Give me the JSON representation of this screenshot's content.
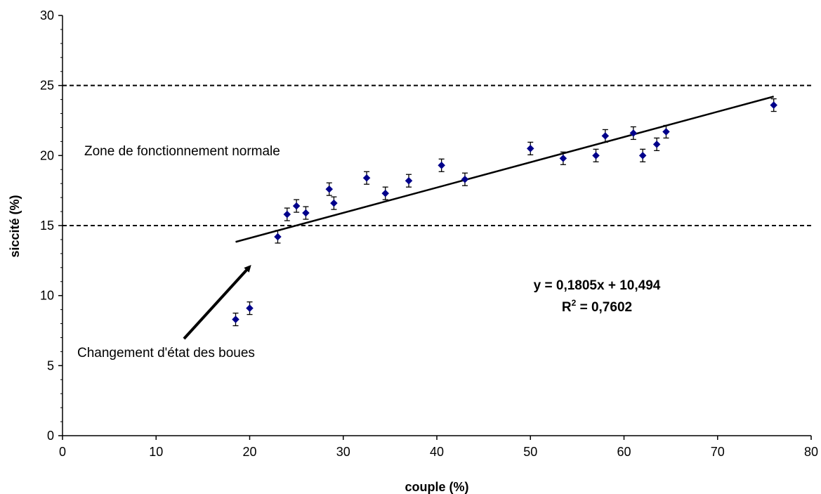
{
  "chart_data": {
    "type": "scatter",
    "xlabel": "couple (%)",
    "ylabel": "siccité (%)",
    "xlim": [
      0,
      80
    ],
    "ylim": [
      0,
      30
    ],
    "x_ticks": [
      "0",
      "10",
      "20",
      "30",
      "40",
      "50",
      "60",
      "70",
      "80"
    ],
    "y_ticks": [
      "0",
      "5",
      "10",
      "15",
      "20",
      "25",
      "30"
    ],
    "grid": false,
    "marker_color": "#00008B",
    "points": [
      {
        "x": 18.5,
        "y": 8.3,
        "err": 0.45
      },
      {
        "x": 20.0,
        "y": 9.1,
        "err": 0.45
      },
      {
        "x": 23.0,
        "y": 14.2,
        "err": 0.45
      },
      {
        "x": 24.0,
        "y": 15.8,
        "err": 0.45
      },
      {
        "x": 25.0,
        "y": 16.4,
        "err": 0.45
      },
      {
        "x": 26.0,
        "y": 15.9,
        "err": 0.45
      },
      {
        "x": 28.5,
        "y": 17.6,
        "err": 0.45
      },
      {
        "x": 29.0,
        "y": 16.6,
        "err": 0.45
      },
      {
        "x": 32.5,
        "y": 18.4,
        "err": 0.45
      },
      {
        "x": 34.5,
        "y": 17.3,
        "err": 0.45
      },
      {
        "x": 37.0,
        "y": 18.2,
        "err": 0.45
      },
      {
        "x": 40.5,
        "y": 19.3,
        "err": 0.45
      },
      {
        "x": 43.0,
        "y": 18.3,
        "err": 0.45
      },
      {
        "x": 50.0,
        "y": 20.5,
        "err": 0.45
      },
      {
        "x": 53.5,
        "y": 19.8,
        "err": 0.45
      },
      {
        "x": 57.0,
        "y": 20.0,
        "err": 0.45
      },
      {
        "x": 58.0,
        "y": 21.4,
        "err": 0.45
      },
      {
        "x": 61.0,
        "y": 21.6,
        "err": 0.45
      },
      {
        "x": 62.0,
        "y": 20.0,
        "err": 0.45
      },
      {
        "x": 63.5,
        "y": 20.8,
        "err": 0.45
      },
      {
        "x": 64.5,
        "y": 21.7,
        "err": 0.45
      },
      {
        "x": 76.0,
        "y": 23.6,
        "err": 0.45
      }
    ],
    "trendline": {
      "slope": 0.1805,
      "intercept": 10.494,
      "x_range": [
        18.5,
        76.0
      ]
    },
    "reference_lines": [
      15,
      25
    ],
    "annotations": {
      "zone_label": "Zone de fonctionnement normale",
      "change_label": "Changement d'état des boues",
      "equation": "y = 0,1805x + 10,494",
      "r2_prefix": "R",
      "r2_sup": "2",
      "r2_value": " = 0,7602"
    }
  }
}
